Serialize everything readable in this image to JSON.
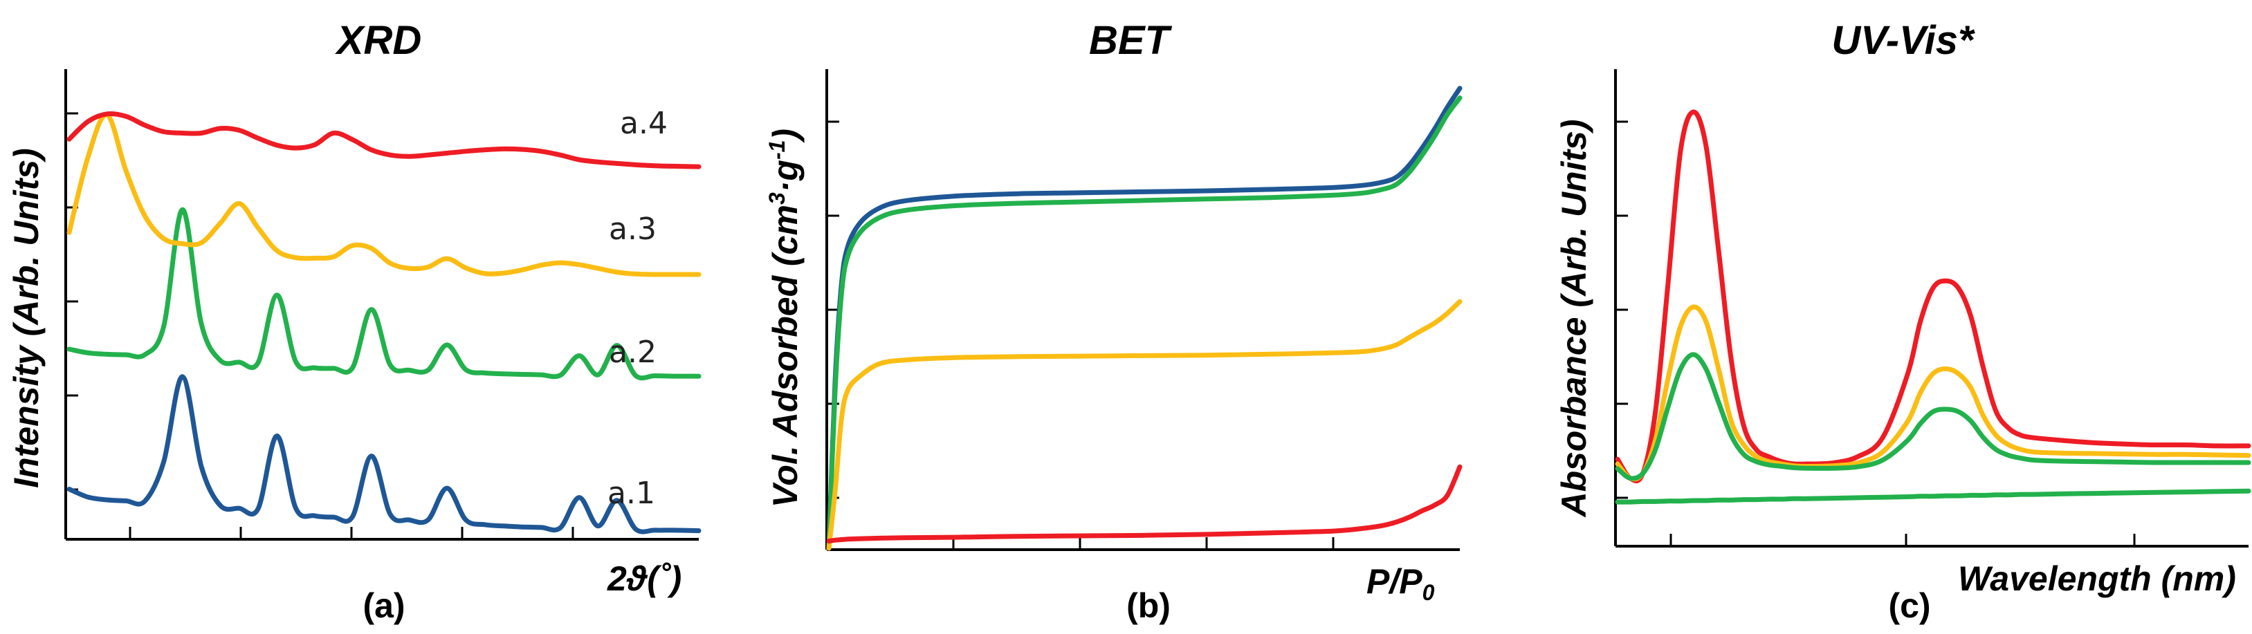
{
  "figure": {
    "panels": [
      {
        "title": "XRD",
        "tag": "(a)",
        "xlabel": "2ϑ(˚)",
        "ylabel": "Intensity (Arb. Units)"
      },
      {
        "title": "BET",
        "tag": "(b)",
        "xlabel_main": "P/P",
        "xlabel_sub": "0",
        "ylabel_a": "Vol. Adsorbed (cm",
        "ylabel_sup1": "3",
        "ylabel_b": "·g",
        "ylabel_sup2": "-1",
        "ylabel_c": ")"
      },
      {
        "title": "UV-Vis*",
        "tag": "(c)",
        "xlabel": "Wavelength (nm)",
        "ylabel": "Absorbance (Arb. Units)"
      }
    ]
  },
  "chart_data": [
    {
      "type": "line",
      "title": "XRD",
      "xlabel": "2ϑ(˚)",
      "ylabel": "Intensity (Arb. Units)",
      "xlim": [
        0,
        100
      ],
      "ylim": [
        0,
        100
      ],
      "x": [
        0,
        3,
        6,
        9,
        12,
        15,
        18,
        21,
        24,
        27,
        30,
        33,
        36,
        39,
        42,
        45,
        48,
        51,
        54,
        57,
        60,
        63,
        66,
        69,
        72,
        75,
        78,
        81,
        84,
        87,
        90,
        93,
        96,
        100
      ],
      "series": [
        {
          "name": "a.1",
          "color": "#1f5796",
          "values": [
            10,
            8.3,
            7.7,
            7.5,
            7.4,
            15.8,
            34.1,
            14.8,
            6.5,
            5.9,
            5.8,
            21.4,
            5.9,
            4.3,
            4.0,
            4.1,
            17.1,
            4.6,
            3.4,
            3.4,
            10.2,
            3.4,
            2.4,
            2.1,
            1.9,
            1.8,
            1.7,
            8.2,
            2.1,
            7.6,
            1.4,
            1.2,
            1.2,
            1.1
          ]
        },
        {
          "name": "a.2",
          "color": "#22b14c",
          "values": [
            40,
            39.2,
            38.9,
            38.8,
            38.8,
            44.8,
            69.9,
            45.4,
            37.6,
            37.2,
            37.1,
            51.6,
            37.3,
            36.0,
            35.9,
            36.0,
            48.5,
            36.6,
            35.5,
            35.5,
            40.9,
            35.6,
            34.9,
            34.7,
            34.6,
            34.5,
            34.4,
            38.6,
            34.5,
            40.8,
            34.3,
            34.3,
            34.2,
            34.2
          ]
        },
        {
          "name": "a.3",
          "color": "#fbbd14",
          "values": [
            65,
            81.2,
            90.2,
            78.3,
            68.6,
            63.7,
            62.6,
            62.8,
            67.0,
            71.2,
            66.0,
            61.1,
            59.6,
            59.5,
            59.8,
            62.2,
            61.6,
            58.4,
            57.3,
            57.6,
            59.4,
            57.4,
            56.2,
            56.3,
            57.0,
            58.0,
            58.5,
            58.1,
            57.3,
            56.5,
            56.1,
            56.0,
            56.0,
            56.0
          ]
        },
        {
          "name": "a.4",
          "color": "#ee1c24",
          "values": [
            85,
            88.8,
            90.4,
            89.9,
            88.0,
            86.6,
            86.3,
            86.3,
            87.3,
            86.9,
            85.2,
            83.7,
            83.1,
            83.8,
            86.3,
            84.9,
            82.7,
            81.6,
            81.3,
            81.6,
            82.0,
            82.4,
            82.7,
            82.9,
            82.8,
            82.4,
            81.6,
            80.6,
            80.1,
            79.8,
            79.5,
            79.3,
            79.2,
            79.1
          ]
        }
      ],
      "labels": [
        "a.1",
        "a.2",
        "a.3",
        "a.4"
      ]
    },
    {
      "type": "line",
      "title": "BET",
      "xlabel": "P/P0",
      "ylabel": "Vol. Adsorbed (cm3·g-1)",
      "xlim": [
        0,
        1
      ],
      "ylim": [
        0,
        100
      ],
      "x": [
        0,
        0.01,
        0.02,
        0.03,
        0.05,
        0.08,
        0.12,
        0.2,
        0.3,
        0.4,
        0.5,
        0.6,
        0.7,
        0.8,
        0.85,
        0.88,
        0.9,
        0.92,
        0.94,
        0.96,
        0.98,
        1.0
      ],
      "series": [
        {
          "name": "blue",
          "color": "#1f5796",
          "values": [
            0,
            35,
            55,
            63,
            68,
            71,
            72.5,
            73.5,
            74.0,
            74.2,
            74.4,
            74.6,
            74.9,
            75.3,
            75.8,
            76.5,
            77.5,
            80.0,
            83.5,
            87.5,
            92.0,
            96.0
          ]
        },
        {
          "name": "green",
          "color": "#22b14c",
          "values": [
            0,
            33,
            53,
            61,
            66,
            69,
            70.5,
            71.5,
            72.0,
            72.3,
            72.6,
            72.9,
            73.2,
            73.7,
            74.2,
            75.0,
            76.0,
            78.5,
            82.0,
            86.0,
            90.5,
            94.0
          ]
        },
        {
          "name": "yellow",
          "color": "#fbbd14",
          "values": [
            0,
            12,
            27,
            33,
            36,
            38.5,
            39.3,
            39.8,
            40.0,
            40.1,
            40.2,
            40.3,
            40.5,
            40.8,
            41.1,
            41.7,
            42.5,
            44.0,
            45.5,
            47.0,
            49.0,
            51.5
          ]
        },
        {
          "name": "red",
          "color": "#ee1c24",
          "values": [
            1.5,
            1.7,
            1.8,
            1.9,
            2.0,
            2.1,
            2.2,
            2.3,
            2.5,
            2.6,
            2.7,
            2.9,
            3.2,
            3.6,
            4.2,
            4.8,
            5.5,
            6.5,
            7.8,
            9.0,
            11.0,
            17.0
          ]
        }
      ]
    },
    {
      "type": "line",
      "title": "UV-Vis*",
      "xlabel": "Wavelength (nm)",
      "ylabel": "Absorbance (Arb. Units)",
      "xlim": [
        0,
        100
      ],
      "ylim": [
        0,
        100
      ],
      "x": [
        0,
        2,
        4,
        6,
        8,
        10,
        12,
        14,
        16,
        18,
        20,
        22,
        24,
        26,
        28,
        30,
        34,
        38,
        42,
        46,
        48,
        50,
        52,
        54,
        56,
        58,
        60,
        62,
        64,
        66,
        70,
        75,
        80,
        85,
        90,
        95,
        100
      ],
      "series": [
        {
          "name": "red",
          "color": "#ee1c24",
          "values": [
            18,
            14,
            15,
            28,
            55,
            83,
            91,
            84,
            62,
            39,
            25,
            20,
            18.5,
            17.5,
            17.0,
            17.0,
            17.2,
            18.5,
            22.5,
            36,
            47,
            54,
            55.5,
            54,
            48,
            37,
            28,
            24.5,
            23,
            22.5,
            22,
            21.5,
            21.2,
            21,
            21,
            20.8,
            20.8
          ]
        },
        {
          "name": "yellow",
          "color": "#fbbd14",
          "values": [
            17,
            14,
            15,
            22,
            35,
            46,
            50,
            47,
            37,
            26,
            21,
            18.5,
            17.5,
            17,
            16.6,
            16.5,
            16.6,
            17.2,
            19.5,
            26,
            32,
            36,
            37,
            36,
            33,
            27,
            23,
            21,
            20,
            19.5,
            19.3,
            19.2,
            19.1,
            19.0,
            19.0,
            18.9,
            18.8
          ]
        },
        {
          "name": "green",
          "color": "#22b14c",
          "values": [
            16,
            14,
            15,
            20,
            29,
            37,
            40,
            37,
            30,
            23,
            19,
            17.5,
            16.8,
            16.5,
            16.2,
            16.1,
            16.1,
            16.4,
            17.8,
            22,
            25.5,
            28,
            28.5,
            28,
            26,
            22.5,
            20,
            18.8,
            18.2,
            17.8,
            17.6,
            17.5,
            17.4,
            17.3,
            17.3,
            17.3,
            17.3
          ]
        },
        {
          "name": "green-baseline",
          "color": "#22b14c",
          "values": [
            9,
            9,
            9.1,
            9.1,
            9.2,
            9.2,
            9.3,
            9.3,
            9.4,
            9.4,
            9.5,
            9.5,
            9.6,
            9.6,
            9.7,
            9.7,
            9.8,
            9.9,
            10.0,
            10.1,
            10.2,
            10.2,
            10.3,
            10.3,
            10.4,
            10.4,
            10.5,
            10.5,
            10.6,
            10.6,
            10.7,
            10.8,
            10.9,
            11.0,
            11.1,
            11.2,
            11.3
          ]
        }
      ]
    }
  ]
}
